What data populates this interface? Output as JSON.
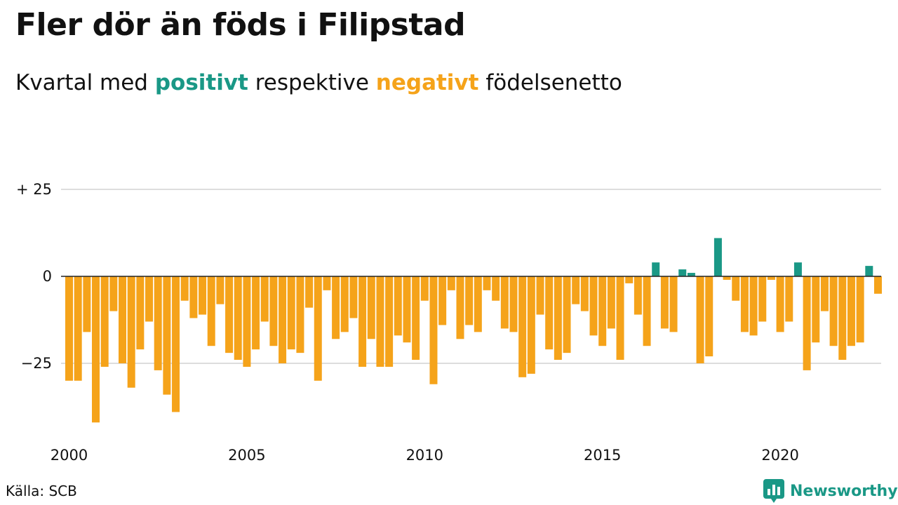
{
  "title": "Fler dör än föds i Filipstad",
  "subtitle": {
    "prefix": "Kvartal med ",
    "positive_word": "positivt",
    "middle": " respektive ",
    "negative_word": "negativt",
    "suffix": " födelsenetto"
  },
  "source": "Källa: SCB",
  "brand": "Newsworthy",
  "colors": {
    "positive": "#1a9886",
    "negative": "#f5a31a",
    "grid": "#dddddd",
    "zero_line": "#222222",
    "text": "#111111"
  },
  "chart_data": {
    "type": "bar",
    "title": "Fler dör än föds i Filipstad",
    "subtitle": "Kvartal med positivt respektive negativt födelsenetto",
    "x_start": "2000 Q1",
    "x_ticks": [
      "2000",
      "2005",
      "2010",
      "2015",
      "2020"
    ],
    "y_ticks": [
      {
        "value": 25,
        "label": "+ 25"
      },
      {
        "value": 0,
        "label": "0"
      },
      {
        "value": -25,
        "label": "−25"
      }
    ],
    "ylim": [
      -45,
      25
    ],
    "grid": true,
    "values": [
      -30,
      -30,
      -16,
      -42,
      -26,
      -10,
      -25,
      -32,
      -21,
      -13,
      -27,
      -34,
      -39,
      -7,
      -12,
      -11,
      -20,
      -8,
      -22,
      -24,
      -26,
      -21,
      -13,
      -20,
      -25,
      -21,
      -22,
      -9,
      -30,
      -4,
      -18,
      -16,
      -12,
      -26,
      -18,
      -26,
      -26,
      -17,
      -19,
      -24,
      -7,
      -31,
      -14,
      -4,
      -18,
      -14,
      -16,
      -4,
      -7,
      -15,
      -16,
      -29,
      -28,
      -11,
      -21,
      -24,
      -22,
      -8,
      -10,
      -17,
      -20,
      -15,
      -24,
      -2,
      -11,
      -20,
      4,
      -15,
      -16,
      2,
      1,
      -25,
      -23,
      11,
      -1,
      -7,
      -16,
      -17,
      -13,
      -1,
      -16,
      -13,
      4,
      -27,
      -19,
      -10,
      -20,
      -24,
      -20,
      -19,
      3,
      -5
    ]
  }
}
